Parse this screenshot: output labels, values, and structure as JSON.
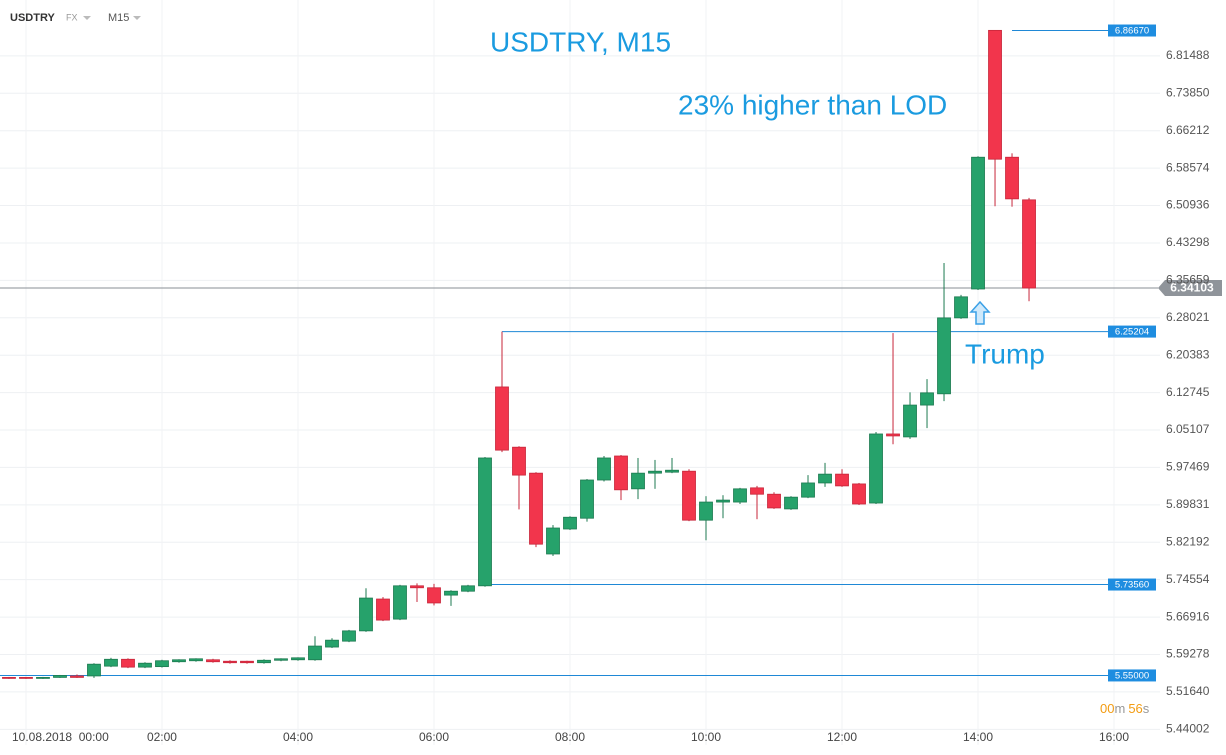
{
  "header": {
    "symbol": "USDTRY",
    "market": "FX",
    "timeframe": "M15"
  },
  "countdown": {
    "minutes": "00",
    "minutes_unit": "m",
    "seconds": "56",
    "seconds_unit": "s"
  },
  "chart_data": {
    "type": "candlestick",
    "title": "USDTRY, M15",
    "annotations": [
      "23% higher than LOD",
      "Trump"
    ],
    "up_color": "#26a26b",
    "down_color": "#f2354c",
    "grid": true,
    "x": [
      -0.25,
      0,
      0.25,
      0.5,
      0.75,
      1,
      1.25,
      1.5,
      1.75,
      2,
      2.25,
      2.5,
      2.75,
      3,
      3.25,
      3.5,
      3.75,
      4,
      4.25,
      4.5,
      4.75,
      5,
      5.25,
      5.5,
      5.75,
      6,
      6.25,
      6.5,
      6.75,
      7,
      7.25,
      7.5,
      7.75,
      8,
      8.25,
      8.5,
      8.75,
      9,
      9.25,
      9.5,
      9.75,
      10,
      10.25,
      10.5,
      10.75,
      11,
      11.25,
      11.5,
      11.75,
      12,
      12.25,
      12.5,
      12.75,
      13,
      13.25,
      13.5,
      13.75,
      14,
      14.25,
      14.5,
      14.75
    ],
    "open": [
      5.546,
      5.546,
      5.545,
      5.546,
      5.549,
      5.549,
      5.569,
      5.583,
      5.567,
      5.568,
      5.578,
      5.58,
      5.582,
      5.579,
      5.579,
      5.576,
      5.581,
      5.582,
      5.582,
      5.608,
      5.62,
      5.641,
      5.706,
      5.665,
      5.733,
      5.729,
      5.714,
      5.722,
      5.733,
      6.139,
      6.016,
      5.963,
      5.798,
      5.849,
      5.871,
      5.949,
      5.998,
      5.931,
      5.963,
      5.965,
      5.967,
      5.867,
      5.904,
      5.904,
      5.933,
      5.92,
      5.89,
      5.914,
      5.943,
      5.961,
      5.941,
      5.902,
      6.043,
      6.037,
      6.102,
      6.125,
      6.28,
      6.339,
      6.867,
      6.608,
      6.521
    ],
    "high": [
      5.547,
      5.547,
      5.547,
      5.551,
      5.552,
      5.575,
      5.586,
      5.585,
      5.577,
      5.582,
      5.583,
      5.585,
      5.584,
      5.581,
      5.58,
      5.583,
      5.585,
      5.587,
      5.63,
      5.626,
      5.643,
      5.728,
      5.71,
      5.735,
      5.738,
      5.737,
      5.724,
      5.735,
      5.996,
      6.252,
      6.018,
      5.965,
      5.857,
      5.875,
      5.951,
      5.998,
      6.0,
      5.994,
      5.99,
      5.994,
      5.971,
      5.916,
      5.918,
      5.933,
      5.937,
      5.924,
      5.916,
      5.959,
      5.984,
      5.971,
      5.943,
      6.047,
      6.249,
      6.128,
      6.155,
      6.392,
      6.327,
      6.61,
      6.867,
      6.616,
      6.525
    ],
    "low": [
      5.543,
      5.543,
      5.543,
      5.545,
      5.545,
      5.545,
      5.567,
      5.565,
      5.565,
      5.566,
      5.576,
      5.578,
      5.576,
      5.574,
      5.574,
      5.574,
      5.579,
      5.58,
      5.58,
      5.606,
      5.618,
      5.639,
      5.661,
      5.663,
      5.7,
      5.693,
      5.692,
      5.72,
      5.731,
      6.006,
      5.889,
      5.812,
      5.794,
      5.847,
      5.864,
      5.946,
      5.908,
      5.91,
      5.931,
      5.963,
      5.865,
      5.826,
      5.871,
      5.9,
      5.869,
      5.89,
      5.888,
      5.912,
      5.935,
      5.935,
      5.898,
      5.9,
      6.022,
      6.033,
      6.055,
      6.11,
      6.278,
      6.337,
      6.508,
      6.507,
      6.314
    ],
    "close": [
      5.544,
      5.544,
      5.546,
      5.55,
      5.546,
      5.573,
      5.583,
      5.567,
      5.575,
      5.58,
      5.582,
      5.584,
      5.578,
      5.576,
      5.576,
      5.581,
      5.584,
      5.586,
      5.61,
      5.622,
      5.641,
      5.708,
      5.663,
      5.733,
      5.729,
      5.698,
      5.722,
      5.733,
      5.994,
      6.01,
      5.959,
      5.818,
      5.851,
      5.873,
      5.949,
      5.994,
      5.929,
      5.963,
      5.967,
      5.969,
      5.867,
      5.904,
      5.908,
      5.931,
      5.92,
      5.892,
      5.914,
      5.943,
      5.961,
      5.937,
      5.9,
      6.043,
      6.039,
      6.102,
      6.127,
      6.28,
      6.323,
      6.608,
      6.604,
      6.523,
      6.341
    ],
    "xlim": [
      -0.382,
      16.676
    ],
    "xticks": [
      {
        "value": 0,
        "label": "10.08.2018  00:00"
      },
      {
        "value": 2,
        "label": "02:00"
      },
      {
        "value": 4,
        "label": "04:00"
      },
      {
        "value": 6,
        "label": "06:00"
      },
      {
        "value": 8,
        "label": "08:00"
      },
      {
        "value": 10,
        "label": "10:00"
      },
      {
        "value": 12,
        "label": "12:00"
      },
      {
        "value": 14,
        "label": "14:00"
      },
      {
        "value": 16,
        "label": "16:00"
      }
    ],
    "ylim": [
      5.408,
      6.929
    ],
    "yticks": [
      6.81488,
      {
        "value": 6.7385,
        "label": "6.73850"
      },
      6.66212,
      6.58574,
      6.50936,
      6.43298,
      6.35659,
      6.28021,
      6.20383,
      6.12745,
      6.05107,
      5.97469,
      5.89831,
      5.82192,
      5.74554,
      5.66916,
      5.59278,
      {
        "value": 5.5164,
        "label": "5.51640"
      },
      5.44002
    ],
    "levels": [
      {
        "value": 6.8667,
        "label": "6.86670",
        "start": 14.5
      },
      {
        "value": 6.25204,
        "label": "6.25204",
        "start": 7
      },
      {
        "value": 5.7356,
        "label": "5.73560",
        "start": 6.75
      },
      {
        "value": 5.55,
        "label": "5.55000"
      }
    ],
    "current_price": 6.34103
  }
}
